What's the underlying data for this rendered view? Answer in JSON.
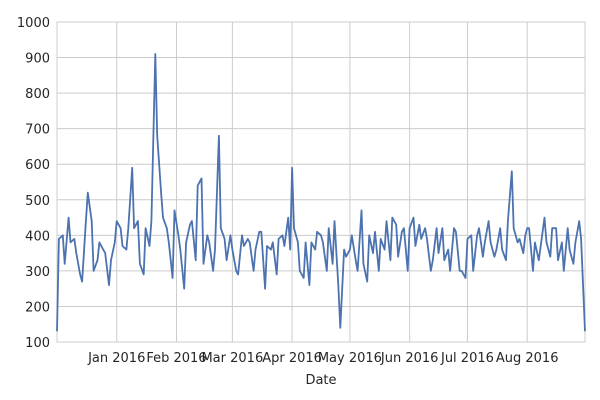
{
  "chart_data": {
    "type": "line",
    "title": "",
    "xlabel": "Date",
    "ylabel": "",
    "ylim": [
      100,
      1000
    ],
    "yticks": [
      100,
      200,
      300,
      400,
      500,
      600,
      700,
      800,
      900,
      1000
    ],
    "xlim": [
      "2015-12-01",
      "2016-08-31"
    ],
    "xticks": [
      {
        "date": "2016-01-01",
        "label": "Jan 2016"
      },
      {
        "date": "2016-02-01",
        "label": "Feb 2016"
      },
      {
        "date": "2016-03-01",
        "label": "Mar 2016"
      },
      {
        "date": "2016-04-01",
        "label": "Apr 2016"
      },
      {
        "date": "2016-05-01",
        "label": "May 2016"
      },
      {
        "date": "2016-06-01",
        "label": "Jun 2016"
      },
      {
        "date": "2016-07-01",
        "label": "Jul 2016"
      },
      {
        "date": "2016-08-01",
        "label": "Aug 2016"
      }
    ],
    "grid": true,
    "line_color": "#4c72b0",
    "series": [
      {
        "x": [
          "2015-12-01",
          "2015-12-02",
          "2015-12-04",
          "2015-12-05",
          "2015-12-07",
          "2015-12-08",
          "2015-12-10",
          "2015-12-11",
          "2015-12-13",
          "2015-12-14",
          "2015-12-16",
          "2015-12-17",
          "2015-12-19",
          "2015-12-20",
          "2015-12-22",
          "2015-12-23",
          "2015-12-25",
          "2015-12-26",
          "2015-12-28",
          "2015-12-29",
          "2015-12-31",
          "2016-01-01",
          "2016-01-03",
          "2016-01-04",
          "2016-01-06",
          "2016-01-07",
          "2016-01-09",
          "2016-01-10",
          "2016-01-12",
          "2016-01-13",
          "2016-01-15",
          "2016-01-16",
          "2016-01-18",
          "2016-01-19",
          "2016-01-21",
          "2016-01-22",
          "2016-01-24",
          "2016-01-25",
          "2016-01-27",
          "2016-01-28",
          "2016-01-30",
          "2016-01-31",
          "2016-02-02",
          "2016-02-03",
          "2016-02-05",
          "2016-02-06",
          "2016-02-08",
          "2016-02-09",
          "2016-02-11",
          "2016-02-12",
          "2016-02-14",
          "2016-02-15",
          "2016-02-17",
          "2016-02-18",
          "2016-02-20",
          "2016-02-21",
          "2016-02-23",
          "2016-02-24",
          "2016-02-26",
          "2016-02-27",
          "2016-02-29",
          "2016-03-01",
          "2016-03-03",
          "2016-03-04",
          "2016-03-06",
          "2016-03-07",
          "2016-03-09",
          "2016-03-10",
          "2016-03-12",
          "2016-03-13",
          "2016-03-15",
          "2016-03-16",
          "2016-03-18",
          "2016-03-19",
          "2016-03-21",
          "2016-03-22",
          "2016-03-24",
          "2016-03-25",
          "2016-03-27",
          "2016-03-28",
          "2016-03-30",
          "2016-03-31",
          "2016-04-01",
          "2016-04-02",
          "2016-04-04",
          "2016-04-05",
          "2016-04-07",
          "2016-04-08",
          "2016-04-10",
          "2016-04-11",
          "2016-04-13",
          "2016-04-14",
          "2016-04-16",
          "2016-04-17",
          "2016-04-19",
          "2016-04-20",
          "2016-04-22",
          "2016-04-23",
          "2016-04-25",
          "2016-04-26",
          "2016-04-28",
          "2016-04-29",
          "2016-05-01",
          "2016-05-02",
          "2016-05-04",
          "2016-05-05",
          "2016-05-07",
          "2016-05-08",
          "2016-05-10",
          "2016-05-11",
          "2016-05-13",
          "2016-05-14",
          "2016-05-16",
          "2016-05-17",
          "2016-05-19",
          "2016-05-20",
          "2016-05-22",
          "2016-05-23",
          "2016-05-25",
          "2016-05-26",
          "2016-05-28",
          "2016-05-29",
          "2016-05-31",
          "2016-06-01",
          "2016-06-03",
          "2016-06-04",
          "2016-06-06",
          "2016-06-07",
          "2016-06-09",
          "2016-06-10",
          "2016-06-12",
          "2016-06-13",
          "2016-06-15",
          "2016-06-16",
          "2016-06-18",
          "2016-06-19",
          "2016-06-21",
          "2016-06-22",
          "2016-06-24",
          "2016-06-25",
          "2016-06-27",
          "2016-06-28",
          "2016-06-30",
          "2016-07-01",
          "2016-07-03",
          "2016-07-04",
          "2016-07-06",
          "2016-07-07",
          "2016-07-09",
          "2016-07-10",
          "2016-07-12",
          "2016-07-13",
          "2016-07-15",
          "2016-07-16",
          "2016-07-18",
          "2016-07-19",
          "2016-07-21",
          "2016-07-22",
          "2016-07-24",
          "2016-07-25",
          "2016-07-27",
          "2016-07-28",
          "2016-07-30",
          "2016-07-31",
          "2016-08-01",
          "2016-08-02",
          "2016-08-04",
          "2016-08-05",
          "2016-08-07",
          "2016-08-08",
          "2016-08-10",
          "2016-08-11",
          "2016-08-13",
          "2016-08-14",
          "2016-08-16",
          "2016-08-17",
          "2016-08-19",
          "2016-08-20",
          "2016-08-22",
          "2016-08-23",
          "2016-08-25",
          "2016-08-26",
          "2016-08-28",
          "2016-08-29",
          "2016-08-31"
        ],
        "y": [
          130,
          390,
          400,
          320,
          450,
          380,
          390,
          350,
          290,
          270,
          440,
          520,
          440,
          300,
          330,
          380,
          360,
          350,
          260,
          330,
          380,
          440,
          420,
          370,
          360,
          420,
          590,
          420,
          440,
          320,
          290,
          420,
          370,
          440,
          910,
          680,
          520,
          450,
          420,
          380,
          280,
          470,
          400,
          360,
          250,
          380,
          430,
          440,
          330,
          540,
          560,
          320,
          400,
          380,
          300,
          360,
          680,
          420,
          390,
          330,
          400,
          360,
          300,
          290,
          400,
          370,
          390,
          380,
          300,
          360,
          410,
          410,
          250,
          370,
          360,
          380,
          290,
          390,
          400,
          370,
          450,
          360,
          590,
          420,
          380,
          300,
          280,
          380,
          260,
          380,
          360,
          410,
          400,
          380,
          300,
          420,
          320,
          440,
          260,
          140,
          360,
          340,
          360,
          400,
          330,
          300,
          470,
          320,
          270,
          400,
          350,
          410,
          300,
          390,
          360,
          440,
          330,
          450,
          430,
          340,
          410,
          420,
          300,
          420,
          450,
          370,
          430,
          390,
          420,
          390,
          300,
          330,
          420,
          350,
          420,
          330,
          360,
          300,
          420,
          410,
          300,
          300,
          280,
          390,
          400,
          300,
          400,
          420,
          340,
          380,
          440,
          380,
          340,
          360,
          420,
          360,
          330,
          440,
          580,
          420,
          380,
          390,
          350,
          400,
          420,
          420,
          300,
          380,
          330,
          370,
          450,
          380,
          340,
          420,
          420,
          330,
          380,
          300,
          420,
          360,
          320,
          380,
          440,
          390,
          130
        ]
      }
    ]
  }
}
